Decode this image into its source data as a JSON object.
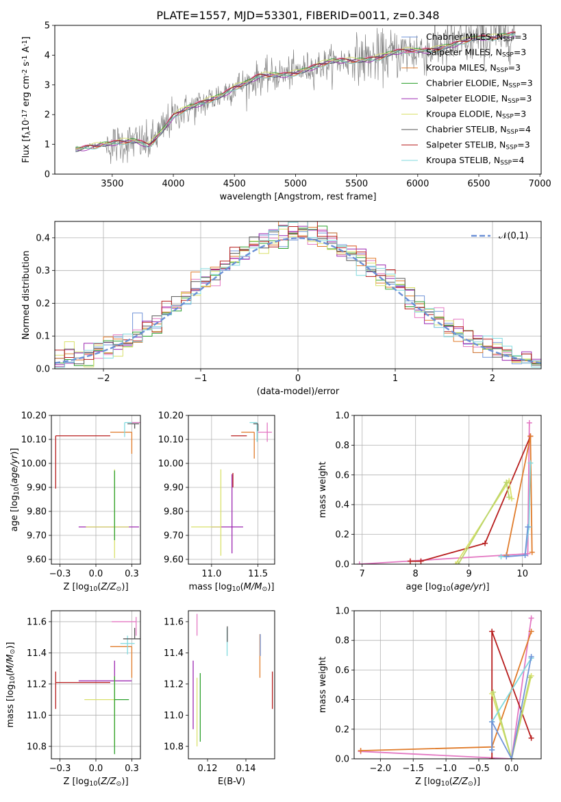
{
  "figure": {
    "title": "PLATE=1557, MJD=53301, FIBERID=0011, z=0.348"
  },
  "chart_data": [
    {
      "id": "spectrum",
      "type": "line",
      "xlabel": "wavelength [Angstrom, rest frame]",
      "ylabel": "Flux [f$_\\lambda$10$^{-17}$ erg cm$^{-2}$ s$^{-1}$ A$^{-1}$]",
      "xlim": [
        3030,
        7010
      ],
      "ylim": [
        0,
        5
      ],
      "xticks": [
        3500,
        4000,
        4500,
        5000,
        5500,
        6000,
        6500,
        7000
      ],
      "yticks": [
        0,
        1,
        2,
        3,
        4,
        5
      ],
      "grid": false,
      "legend_position": "top-right",
      "data_continuum": {
        "x": [
          3200,
          3300,
          3400,
          3500,
          3600,
          3700,
          3800,
          3900,
          4000,
          4100,
          4200,
          4300,
          4400,
          4500,
          4600,
          4700,
          4800,
          4900,
          5000,
          5100,
          5200,
          5300,
          5400,
          5500,
          5600,
          5700,
          5800,
          5900,
          6000,
          6100,
          6200,
          6300,
          6400,
          6500,
          6600,
          6700,
          6800
        ],
        "y": [
          0.85,
          0.95,
          1.0,
          1.0,
          1.05,
          1.1,
          1.0,
          1.45,
          1.95,
          2.15,
          2.3,
          2.5,
          2.7,
          2.95,
          3.05,
          3.25,
          3.3,
          3.35,
          3.45,
          3.55,
          3.65,
          3.75,
          3.8,
          3.85,
          3.9,
          3.95,
          4.05,
          4.1,
          4.15,
          4.2,
          4.3,
          4.35,
          4.45,
          4.55,
          4.6,
          4.7,
          4.75
        ]
      },
      "series": [
        {
          "name": "Chabrier MILES, N$_{SSP}$=3",
          "color": "#6f93d8",
          "offset": 0.0
        },
        {
          "name": "Salpeter MILES, N$_{SSP}$=3",
          "color": "#e377c2",
          "offset": 0.03
        },
        {
          "name": "Kroupa MILES, N$_{SSP}$=3",
          "color": "#e07b2a",
          "offset": -0.02
        },
        {
          "name": "Chabrier ELODIE, N$_{SSP}$=3",
          "color": "#2ca02c",
          "offset": 0.02
        },
        {
          "name": "Salpeter ELODIE, N$_{SSP}$=3",
          "color": "#9b27b0",
          "offset": -0.03
        },
        {
          "name": "Kroupa ELODIE, N$_{SSP}$=3",
          "color": "#d9e06a",
          "offset": 0.05
        },
        {
          "name": "Chabrier STELIB, N$_{SSP}$=4",
          "color": "#555555",
          "offset": -0.01
        },
        {
          "name": "Salpeter STELIB, N$_{SSP}$=3",
          "color": "#b71c1c",
          "offset": 0.01
        },
        {
          "name": "Kroupa STELIB, N$_{SSP}$=4",
          "color": "#7fd9de",
          "offset": -0.04
        }
      ]
    },
    {
      "id": "residuals",
      "type": "line",
      "xlabel": "(data-model)/error",
      "ylabel": "Normed distribution",
      "xlim": [
        -2.5,
        2.5
      ],
      "ylim": [
        0,
        0.45
      ],
      "xticks": [
        -2,
        -1,
        0,
        1,
        2
      ],
      "yticks": [
        0.0,
        0.1,
        0.2,
        0.3,
        0.4
      ],
      "grid": true,
      "legend": "$\\mathcal{N}(0,1)$",
      "legend_position": "top-right",
      "bin_width": 0.1,
      "series_colors": [
        "#6f93d8",
        "#e377c2",
        "#e07b2a",
        "#2ca02c",
        "#9b27b0",
        "#d9e06a",
        "#555555",
        "#b71c1c",
        "#7fd9de"
      ],
      "normal_curve_color": "#6a8fd6"
    },
    {
      "id": "age_vs_Z",
      "type": "scatter",
      "xlabel": "Z [log$_{10}$($Z/Z_\\odot$)]",
      "ylabel": "age  [log$_{10}$($age/yr$)]",
      "xlim": [
        -0.31,
        0.31
      ],
      "ylim": [
        9.58,
        10.2
      ],
      "xticks": [
        -0.25,
        0.0,
        0.25
      ],
      "yticks": [
        9.6,
        9.7,
        9.8,
        9.9,
        10.0,
        10.1,
        10.2
      ],
      "grid": true,
      "points": [
        {
          "x": -0.28,
          "y": 10.115,
          "xerr": [
            0.0,
            0.38
          ],
          "yerr": [
            0.22,
            0.0
          ],
          "color": "#b71c1c"
        },
        {
          "x": 0.25,
          "y": 10.13,
          "xerr": [
            0.15,
            0.0
          ],
          "yerr": [
            0.09,
            0.0
          ],
          "color": "#e07b2a"
        },
        {
          "x": 0.2,
          "y": 10.17,
          "xerr": [
            0.0,
            0.1
          ],
          "yerr": [
            0.06,
            0.0
          ],
          "color": "#7fd9de"
        },
        {
          "x": 0.27,
          "y": 10.165,
          "xerr": [
            0.05,
            0.03
          ],
          "yerr": [
            0.02,
            0.0
          ],
          "color": "#555555"
        },
        {
          "x": 0.28,
          "y": 10.17,
          "xerr": [
            0.03,
            0.03
          ],
          "yerr": [
            0.0,
            0.0
          ],
          "color": "#e377c2"
        },
        {
          "x": 0.13,
          "y": 9.735,
          "xerr": [
            0.25,
            0.17
          ],
          "yerr": [
            0.0,
            0.0
          ],
          "color": "#9b27b0"
        },
        {
          "x": 0.13,
          "y": 9.735,
          "xerr": [
            0.2,
            0.1
          ],
          "yerr": [
            0.13,
            0.24
          ],
          "color": "#d9e06a"
        },
        {
          "x": 0.13,
          "y": 9.85,
          "xerr": [
            0.0,
            0.0
          ],
          "yerr": [
            0.17,
            0.12
          ],
          "color": "#2ca02c"
        }
      ]
    },
    {
      "id": "age_vs_mass",
      "type": "scatter",
      "xlabel": "mass [log$_{10}$($M/M_\\odot$)]",
      "ylabel": "",
      "xlim": [
        10.75,
        11.68
      ],
      "ylim": [
        9.58,
        10.2
      ],
      "xticks": [
        11.0,
        11.5
      ],
      "yticks": [
        9.6,
        9.7,
        9.8,
        9.9,
        10.0,
        10.1,
        10.2
      ],
      "grid": true,
      "points": [
        {
          "x": 11.21,
          "y": 10.115,
          "xerr": [
            0.0,
            0.17
          ],
          "yerr": [
            0.0,
            0.0
          ],
          "color": "#b71c1c"
        },
        {
          "x": 11.46,
          "y": 10.13,
          "xerr": [
            0.14,
            0.0
          ],
          "yerr": [
            0.11,
            0.0
          ],
          "color": "#e07b2a"
        },
        {
          "x": 11.49,
          "y": 10.17,
          "xerr": [
            0.08,
            0.0
          ],
          "yerr": [
            0.08,
            0.0
          ],
          "color": "#7fd9de"
        },
        {
          "x": 11.5,
          "y": 10.165,
          "xerr": [
            0.05,
            0.0
          ],
          "yerr": [
            0.03,
            0.0
          ],
          "color": "#555555"
        },
        {
          "x": 11.6,
          "y": 10.13,
          "xerr": [
            0.1,
            0.05
          ],
          "yerr": [
            0.04,
            0.04
          ],
          "color": "#e377c2"
        },
        {
          "x": 11.22,
          "y": 9.735,
          "xerr": [
            0.22,
            0.12
          ],
          "yerr": [
            0.11,
            0.22
          ],
          "color": "#9b27b0"
        },
        {
          "x": 11.1,
          "y": 9.735,
          "xerr": [
            0.32,
            0.0
          ],
          "yerr": [
            0.12,
            0.24
          ],
          "color": "#d9e06a"
        },
        {
          "x": 11.23,
          "y": 9.9,
          "xerr": [
            0.0,
            0.0
          ],
          "yerr": [
            0.0,
            0.06
          ],
          "color": "#b71c1c"
        }
      ]
    },
    {
      "id": "weight_vs_age",
      "type": "line",
      "xlabel": "age  [log$_{10}$($age/yr$)]",
      "ylabel": "mass weight",
      "xlim": [
        6.85,
        10.35
      ],
      "ylim": [
        0.0,
        1.0
      ],
      "xticks": [
        7,
        8,
        9,
        10
      ],
      "yticks": [
        0.0,
        0.2,
        0.4,
        0.6,
        0.8,
        1.0
      ],
      "grid": true,
      "series": [
        {
          "color": "#e377c2",
          "x": [
            6.95,
            10.1,
            10.13
          ],
          "y": [
            0.0,
            0.07,
            0.95
          ]
        },
        {
          "color": "#b71c1c",
          "x": [
            7.9,
            8.1,
            9.3,
            10.15
          ],
          "y": [
            0.02,
            0.02,
            0.14,
            0.86
          ]
        },
        {
          "color": "#e07b2a",
          "x": [
            9.7,
            10.15,
            10.18
          ],
          "y": [
            0.06,
            0.86,
            0.08
          ]
        },
        {
          "color": "#d9e06a",
          "x": [
            8.75,
            9.75,
            9.8
          ],
          "y": [
            0.0,
            0.56,
            0.44
          ]
        },
        {
          "color": "#bcd66a",
          "x": [
            8.8,
            9.7,
            9.75
          ],
          "y": [
            0.0,
            0.55,
            0.45
          ]
        },
        {
          "color": "#7fd9de",
          "x": [
            9.6,
            10.05,
            10.12,
            10.15
          ],
          "y": [
            0.05,
            0.06,
            0.25,
            0.68
          ]
        },
        {
          "color": "#6f93d8",
          "x": [
            9.7,
            10.05,
            10.1
          ],
          "y": [
            0.05,
            0.06,
            0.25
          ]
        }
      ]
    },
    {
      "id": "mass_vs_Z",
      "type": "scatter",
      "xlabel": "Z [log$_{10}$($Z/Z_\\odot$)]",
      "ylabel": "mass [log$_{10}$($M/M_\\odot$)]",
      "xlim": [
        -0.31,
        0.31
      ],
      "ylim": [
        10.72,
        11.67
      ],
      "xticks": [
        -0.25,
        0.0,
        0.25
      ],
      "yticks": [
        10.8,
        11.0,
        11.2,
        11.4,
        11.6
      ],
      "grid": true,
      "points": [
        {
          "x": -0.28,
          "y": 11.21,
          "xerr": [
            0.0,
            0.38
          ],
          "yerr": [
            0.17,
            0.07
          ],
          "color": "#b71c1c"
        },
        {
          "x": 0.25,
          "y": 11.44,
          "xerr": [
            0.15,
            0.0
          ],
          "yerr": [
            0.2,
            0.0
          ],
          "color": "#e07b2a"
        },
        {
          "x": 0.22,
          "y": 11.46,
          "xerr": [
            0.05,
            0.05
          ],
          "yerr": [
            0.07,
            0.05
          ],
          "color": "#7fd9de"
        },
        {
          "x": 0.27,
          "y": 11.49,
          "xerr": [
            0.08,
            0.04
          ],
          "yerr": [
            0.0,
            0.07
          ],
          "color": "#555555"
        },
        {
          "x": 0.28,
          "y": 11.6,
          "xerr": [
            0.17,
            0.0
          ],
          "yerr": [
            0.09,
            0.03
          ],
          "color": "#e377c2"
        },
        {
          "x": 0.13,
          "y": 11.22,
          "xerr": [
            0.25,
            0.12
          ],
          "yerr": [
            0.0,
            0.13
          ],
          "color": "#9b27b0"
        },
        {
          "x": 0.13,
          "y": 11.1,
          "xerr": [
            0.21,
            0.0
          ],
          "yerr": [
            0.3,
            0.15
          ],
          "color": "#d9e06a"
        },
        {
          "x": 0.13,
          "y": 11.1,
          "xerr": [
            0.0,
            0.1
          ],
          "yerr": [
            0.35,
            0.15
          ],
          "color": "#2ca02c"
        }
      ]
    },
    {
      "id": "mass_vs_ebv",
      "type": "scatter",
      "xlabel": "E(B-V)",
      "ylabel": "",
      "xlim": [
        0.11,
        0.155
      ],
      "ylim": [
        10.72,
        11.67
      ],
      "xticks": [
        0.12,
        0.14
      ],
      "yticks": [
        10.8,
        11.0,
        11.2,
        11.4,
        11.6
      ],
      "grid": false,
      "points": [
        {
          "x": 0.1538,
          "y": 11.16,
          "xerr": [
            0.0,
            0.0
          ],
          "yerr": [
            0.12,
            0.12
          ],
          "color": "#b71c1c"
        },
        {
          "x": 0.1473,
          "y": 11.38,
          "xerr": [
            0.0,
            0.0
          ],
          "yerr": [
            0.14,
            0.14
          ],
          "color": "#e07b2a"
        },
        {
          "x": 0.1475,
          "y": 11.45,
          "xerr": [
            0.0,
            0.0
          ],
          "yerr": [
            0.07,
            0.07
          ],
          "color": "#6f93d8"
        },
        {
          "x": 0.1302,
          "y": 11.47,
          "xerr": [
            0.0,
            0.0
          ],
          "yerr": [
            0.09,
            0.09
          ],
          "color": "#7fd9de"
        },
        {
          "x": 0.1303,
          "y": 11.52,
          "xerr": [
            0.0,
            0.0
          ],
          "yerr": [
            0.05,
            0.05
          ],
          "color": "#555555"
        },
        {
          "x": 0.1145,
          "y": 11.58,
          "xerr": [
            0.0,
            0.0
          ],
          "yerr": [
            0.07,
            0.07
          ],
          "color": "#e377c2"
        },
        {
          "x": 0.1125,
          "y": 11.13,
          "xerr": [
            0.0,
            0.0
          ],
          "yerr": [
            0.22,
            0.22
          ],
          "color": "#9b27b0"
        },
        {
          "x": 0.1145,
          "y": 11.02,
          "xerr": [
            0.0,
            0.0
          ],
          "yerr": [
            0.22,
            0.22
          ],
          "color": "#d9e06a"
        },
        {
          "x": 0.1162,
          "y": 11.05,
          "xerr": [
            0.0,
            0.0
          ],
          "yerr": [
            0.22,
            0.22
          ],
          "color": "#2ca02c"
        }
      ]
    },
    {
      "id": "weight_vs_Z",
      "type": "line",
      "xlabel": "Z [log$_{10}$($Z/Z_\\odot$)]",
      "ylabel": "mass weight",
      "xlim": [
        -2.4,
        0.45
      ],
      "ylim": [
        0.0,
        1.0
      ],
      "xticks": [
        -2.0,
        -1.5,
        -1.0,
        -0.5,
        0.0
      ],
      "yticks": [
        0.0,
        0.2,
        0.4,
        0.6,
        0.8,
        1.0
      ],
      "grid": true,
      "series": [
        {
          "color": "#e377c2",
          "x": [
            -2.3,
            0.0,
            0.3
          ],
          "y": [
            0.05,
            0.0,
            0.95
          ]
        },
        {
          "color": "#e07b2a",
          "x": [
            -2.3,
            -0.3,
            0.3
          ],
          "y": [
            0.055,
            0.08,
            0.86
          ]
        },
        {
          "color": "#b71c1c",
          "x": [
            -0.3,
            -0.3,
            0.3
          ],
          "y": [
            0.0,
            0.86,
            0.14
          ]
        },
        {
          "color": "#d9e06a",
          "x": [
            -0.3,
            0.0,
            0.3
          ],
          "y": [
            0.44,
            0.0,
            0.56
          ]
        },
        {
          "color": "#bcd66a",
          "x": [
            -0.28,
            0.0,
            0.28
          ],
          "y": [
            0.45,
            0.0,
            0.55
          ]
        },
        {
          "color": "#7fd9de",
          "x": [
            -0.3,
            -0.3,
            0.3
          ],
          "y": [
            0.06,
            0.25,
            0.68
          ]
        },
        {
          "color": "#6f93d8",
          "x": [
            -0.3,
            -0.3,
            0.0,
            0.3
          ],
          "y": [
            0.06,
            0.25,
            0.0,
            0.69
          ]
        }
      ]
    }
  ]
}
